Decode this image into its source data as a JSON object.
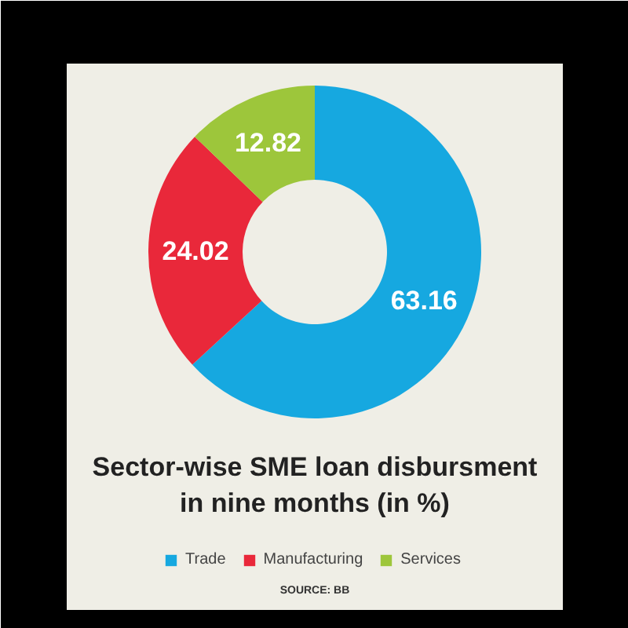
{
  "chart_data": {
    "type": "donut",
    "title": "Sector-wise SME loan disbursment in nine months (in %)",
    "categories": [
      "Trade",
      "Manufacturing",
      "Services"
    ],
    "values": [
      63.16,
      24.02,
      12.82
    ],
    "colors": [
      "#16a8e0",
      "#e9283a",
      "#9dc63b"
    ],
    "data_labels": true,
    "legend": "bottom",
    "annotations": [
      "SOURCE: BB"
    ]
  }
}
